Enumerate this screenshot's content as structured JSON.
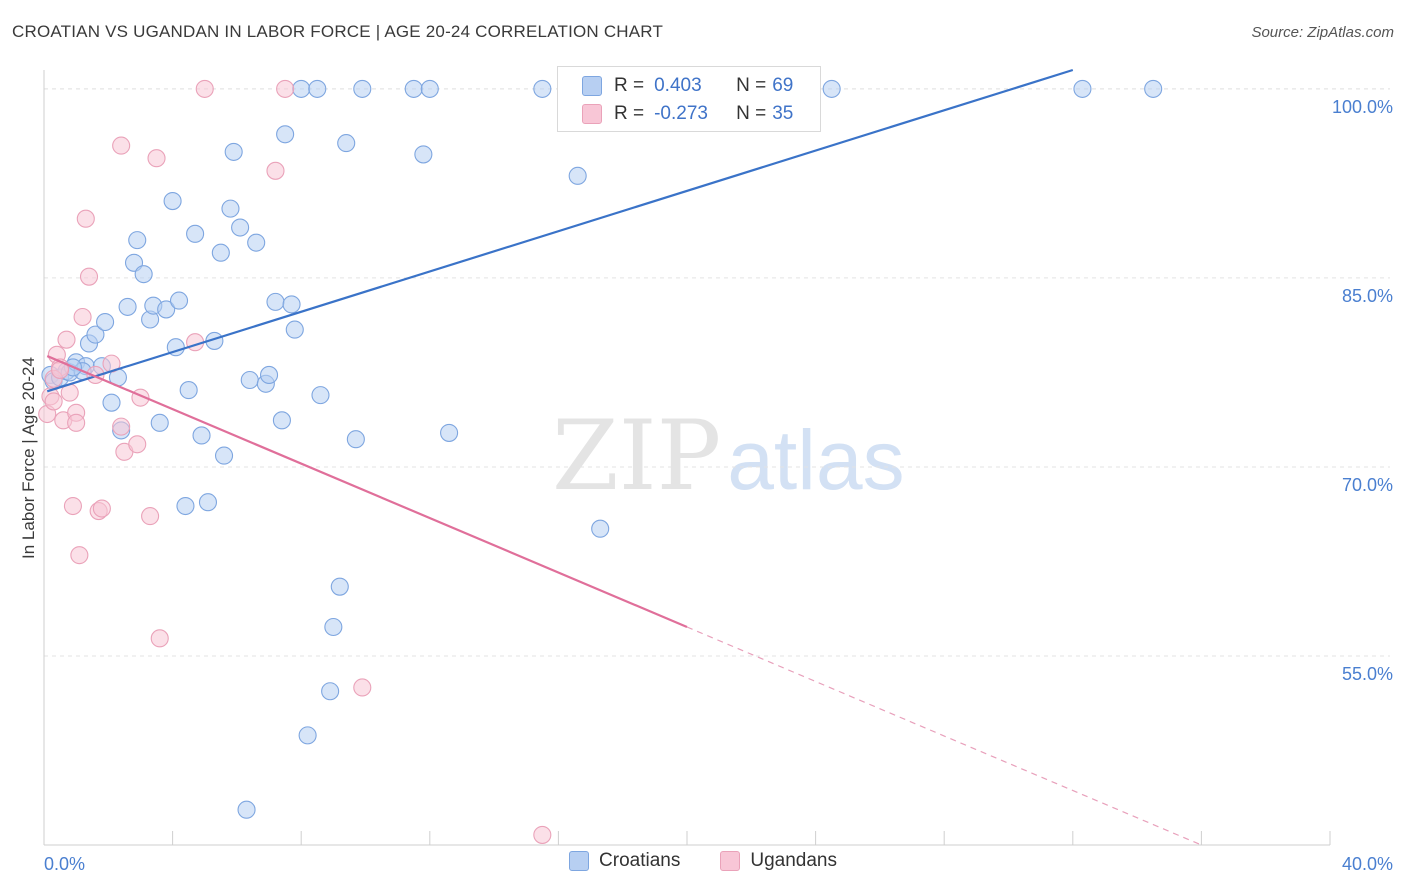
{
  "header": {
    "title": "CROATIAN VS UGANDAN IN LABOR FORCE | AGE 20-24 CORRELATION CHART",
    "source": "Source: ZipAtlas.com"
  },
  "watermark": {
    "zip": "ZIP",
    "atlas": "atlas"
  },
  "legend": {
    "rows": [
      {
        "r_label": "R =",
        "r_value": "0.403",
        "n_label": "N =",
        "n_value": "69",
        "color": "#b7cff2"
      },
      {
        "r_label": "R =",
        "r_value": "-0.273",
        "n_label": "N =",
        "n_value": "35",
        "color": "#f8c6d6"
      }
    ],
    "bottom": [
      {
        "label": "Croatians",
        "color": "#b7cff2"
      },
      {
        "label": "Ugandans",
        "color": "#f8c6d6"
      }
    ]
  },
  "chart_data": {
    "type": "scatter",
    "title": "CROATIAN VS UGANDAN IN LABOR FORCE | AGE 20-24 CORRELATION CHART",
    "ylabel": "In Labor Force | Age 20-24",
    "xlabel": "",
    "xlim": [
      0,
      40
    ],
    "ylim": [
      40,
      101.5
    ],
    "x_tick_labels": [
      {
        "value": 0,
        "label": "0.0%"
      },
      {
        "value": 40,
        "label": "40.0%"
      }
    ],
    "y_tick_labels": [
      {
        "value": 100,
        "label": "100.0%"
      },
      {
        "value": 85,
        "label": "85.0%"
      },
      {
        "value": 70,
        "label": "70.0%"
      },
      {
        "value": 55,
        "label": "55.0%"
      }
    ],
    "grid": "horizontal dashed",
    "legend_position": "top-center",
    "series": [
      {
        "name": "Croatians",
        "color": "#7ea6e0",
        "fill": "#b7cff2",
        "trend": {
          "x0": 0.1,
          "y0": 76.0,
          "x1": 32.0,
          "y1": 101.5,
          "style": "solid",
          "color": "#3a73c8"
        },
        "points": [
          [
            0.2,
            77.3
          ],
          [
            0.3,
            76.8
          ],
          [
            0.5,
            77.1
          ],
          [
            0.7,
            77.6
          ],
          [
            0.8,
            77.5
          ],
          [
            1.0,
            78.3
          ],
          [
            1.3,
            78.0
          ],
          [
            1.2,
            77.6
          ],
          [
            1.4,
            79.8
          ],
          [
            1.6,
            80.5
          ],
          [
            1.9,
            81.5
          ],
          [
            1.8,
            78.0
          ],
          [
            2.1,
            75.1
          ],
          [
            2.3,
            77.1
          ],
          [
            2.4,
            72.9
          ],
          [
            2.6,
            82.7
          ],
          [
            2.8,
            86.2
          ],
          [
            2.9,
            88.0
          ],
          [
            3.1,
            85.3
          ],
          [
            3.3,
            81.7
          ],
          [
            3.4,
            82.8
          ],
          [
            3.6,
            73.5
          ],
          [
            3.8,
            82.5
          ],
          [
            4.0,
            91.1
          ],
          [
            4.1,
            79.5
          ],
          [
            4.2,
            83.2
          ],
          [
            4.4,
            66.9
          ],
          [
            4.5,
            76.1
          ],
          [
            4.7,
            88.5
          ],
          [
            4.9,
            72.5
          ],
          [
            5.1,
            67.2
          ],
          [
            5.3,
            80.0
          ],
          [
            5.5,
            87.0
          ],
          [
            5.6,
            70.9
          ],
          [
            5.8,
            90.5
          ],
          [
            5.9,
            95.0
          ],
          [
            6.1,
            89.0
          ],
          [
            6.3,
            42.8
          ],
          [
            6.4,
            76.9
          ],
          [
            6.6,
            87.8
          ],
          [
            6.9,
            76.6
          ],
          [
            7.0,
            77.3
          ],
          [
            7.2,
            83.1
          ],
          [
            7.4,
            73.7
          ],
          [
            7.5,
            96.4
          ],
          [
            7.7,
            82.9
          ],
          [
            7.8,
            80.9
          ],
          [
            8.0,
            100.0
          ],
          [
            8.2,
            48.7
          ],
          [
            8.5,
            100.0
          ],
          [
            8.6,
            75.7
          ],
          [
            8.9,
            52.2
          ],
          [
            9.0,
            57.3
          ],
          [
            9.2,
            60.5
          ],
          [
            9.4,
            95.7
          ],
          [
            9.7,
            72.2
          ],
          [
            9.9,
            100.0
          ],
          [
            11.5,
            100.0
          ],
          [
            11.8,
            94.8
          ],
          [
            12.0,
            100.0
          ],
          [
            12.6,
            72.7
          ],
          [
            15.5,
            100.0
          ],
          [
            16.6,
            93.1
          ],
          [
            17.3,
            65.1
          ],
          [
            22.2,
            100.0
          ],
          [
            24.5,
            100.0
          ],
          [
            32.3,
            100.0
          ],
          [
            34.5,
            100.0
          ],
          [
            0.9,
            77.9
          ]
        ]
      },
      {
        "name": "Ugandans",
        "color": "#eaa2b9",
        "fill": "#f8c6d6",
        "trend": {
          "x0": 0.1,
          "y0": 78.8,
          "x1": 20.0,
          "y1": 57.3,
          "style": "solid",
          "color": "#e06f9a"
        },
        "trend_extension": {
          "x0": 20.0,
          "y0": 57.3,
          "x1": 36.0,
          "y1": 40.0,
          "style": "dashed",
          "color": "#e8a0bb"
        },
        "points": [
          [
            0.1,
            74.2
          ],
          [
            0.2,
            75.6
          ],
          [
            0.3,
            75.2
          ],
          [
            0.4,
            78.9
          ],
          [
            0.5,
            77.9
          ],
          [
            0.6,
            73.7
          ],
          [
            0.7,
            80.1
          ],
          [
            0.8,
            75.9
          ],
          [
            0.9,
            66.9
          ],
          [
            1.0,
            74.3
          ],
          [
            1.0,
            73.5
          ],
          [
            1.1,
            63.0
          ],
          [
            1.3,
            89.7
          ],
          [
            1.2,
            81.9
          ],
          [
            1.4,
            85.1
          ],
          [
            1.6,
            77.3
          ],
          [
            1.7,
            66.5
          ],
          [
            1.8,
            66.7
          ],
          [
            2.1,
            78.2
          ],
          [
            2.4,
            95.5
          ],
          [
            2.4,
            73.2
          ],
          [
            2.5,
            71.2
          ],
          [
            2.9,
            71.8
          ],
          [
            3.0,
            75.5
          ],
          [
            3.3,
            66.1
          ],
          [
            3.5,
            94.5
          ],
          [
            3.6,
            56.4
          ],
          [
            4.7,
            79.9
          ],
          [
            5.0,
            100.0
          ],
          [
            7.2,
            93.5
          ],
          [
            7.5,
            100.0
          ],
          [
            9.9,
            52.5
          ],
          [
            15.5,
            40.8
          ],
          [
            0.3,
            77.0
          ],
          [
            0.5,
            77.7
          ]
        ]
      }
    ]
  }
}
